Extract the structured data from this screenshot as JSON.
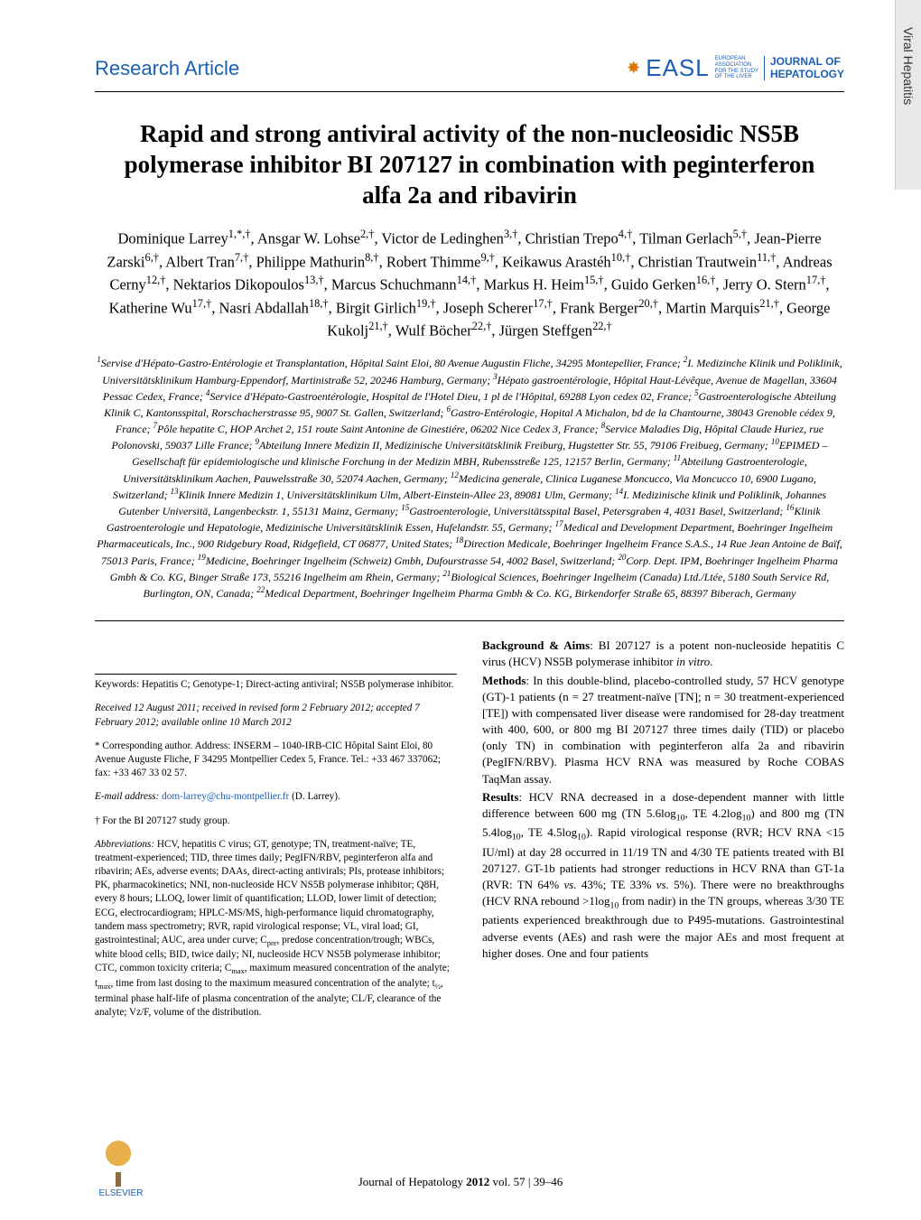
{
  "side_tab": "Viral Hepatitis",
  "header": {
    "section": "Research Article",
    "easl": "EASL",
    "easl_sub1": "EUROPEAN",
    "easl_sub2": "ASSOCIATION",
    "easl_sub3": "FOR THE STUDY",
    "easl_sub4": "OF THE LIVER",
    "journal1": "JOURNAL OF",
    "journal2": "HEPATOLOGY"
  },
  "title": "Rapid and strong antiviral activity of the non-nucleosidic NS5B polymerase inhibitor BI 207127 in combination with peginterferon alfa 2a and ribavirin",
  "authors_html": "Dominique Larrey<sup>1,*,†</sup>, Ansgar W. Lohse<sup>2,†</sup>, Victor de Ledinghen<sup>3,†</sup>, Christian Trepo<sup>4,†</sup>, Tilman Gerlach<sup>5,†</sup>, Jean-Pierre Zarski<sup>6,†</sup>, Albert Tran<sup>7,†</sup>, Philippe Mathurin<sup>8,†</sup>, Robert Thimme<sup>9,†</sup>, Keikawus Arastéh<sup>10,†</sup>, Christian Trautwein<sup>11,†</sup>, Andreas Cerny<sup>12,†</sup>, Nektarios Dikopoulos<sup>13,†</sup>, Marcus Schuchmann<sup>14,†</sup>, Markus H. Heim<sup>15,†</sup>, Guido Gerken<sup>16,†</sup>, Jerry O. Stern<sup>17,†</sup>, Katherine Wu<sup>17,†</sup>, Nasri Abdallah<sup>18,†</sup>, Birgit Girlich<sup>19,†</sup>, Joseph Scherer<sup>17,†</sup>, Frank Berger<sup>20,†</sup>, Martin Marquis<sup>21,†</sup>, George Kukolj<sup>21,†</sup>, Wulf Böcher<sup>22,†</sup>, Jürgen Steffgen<sup>22,†</sup>",
  "affiliations_html": "<sup>1</sup>Servise d'Hépato-Gastro-Entérologie et Transplantation, Hôpital Saint Eloi, 80 Avenue Augustin Fliche, 34295 Montepellier, France; <sup>2</sup>I. Medizinche Klinik und Poliklinik, Universitätsklinikum Hamburg-Eppendorf, Martinistraße 52, 20246 Hamburg, Germany; <sup>3</sup>Hépato gastroentérologie, Hôpital Haut-Lévêque, Avenue de Magellan, 33604 Pessac Cedex, France; <sup>4</sup>Service d'Hépato-Gastroentérologie, Hospital de l'Hotel Dieu, 1 pl de l'Hôpital, 69288 Lyon cedex 02, France; <sup>5</sup>Gastroenterologische Abteilung Klinik C, Kantonsspital, Rorschacherstrasse 95, 9007 St. Gallen, Switzerland; <sup>6</sup>Gastro-Entérologie, Hopital A Michalon, bd de la Chantourne, 38043 Grenoble cédex 9, France; <sup>7</sup>Pôle hepatite C, HOP Archet 2, 151 route Saint Antonine de Ginestiére, 06202 Nice Cedex 3, France; <sup>8</sup>Service Maladies Dig, Hôpital Claude Huriez, rue Polonovski, 59037 Lille France; <sup>9</sup>Abteilung Innere Medizin II, Medizinische Universitätsklinik Freiburg, Hugstetter Str. 55, 79106 Freibueg, Germany; <sup>10</sup>EPIMED – Gesellschaft für epidemiologische und klinische Forchung in der Medizin MBH, Rubensstreße 125, 12157 Berlin, Germany; <sup>11</sup>Abteilung Gastroenterologie, Universitätsklinikum Aachen, Pauwelsstraße 30, 52074 Aachen, Germany; <sup>12</sup>Medicina generale, Clinica Luganese Moncucco, Via Moncucco 10, 6900 Lugano, Switzerland; <sup>13</sup>Klinik Innere Medizin 1, Universitätsklinikum Ulm, Albert-Einstein-Allee 23, 89081 Ulm, Germany; <sup>14</sup>I. Medizinische klinik und Poliklinik, Johannes Gutenber Universitä, Langenbeckstr. 1, 55131 Mainz, Germany; <sup>15</sup>Gastroenterologie, Universitätsspital Basel, Petersgraben 4, 4031 Basel, Switzerland; <sup>16</sup>Klinik Gastroenterologie und Hepatologie, Medizinische Universitätsklinik Essen, Hufelandstr. 55, Germany; <sup>17</sup>Medical and Development Department, Boehringer Ingelheim Pharmaceuticals, Inc., 900 Ridgebury Road, Ridgefield, CT 06877, United States; <sup>18</sup>Direction Medicale, Boehringer Ingelheim France S.A.S., 14 Rue Jean Antoine de Baïf, 75013 Paris, France; <sup>19</sup>Medicine, Boehringer Ingelheim (Schweiz) Gmbh, Dufourstrasse 54, 4002 Basel, Switzerland; <sup>20</sup>Corp. Dept. IPM, Boehringer Ingelheim Pharma Gmbh & Co. KG, Binger Straße 173, 55216 Ingelheim am Rhein, Germany; <sup>21</sup>Biological Sciences, Boehringer Ingelheim (Canada) Ltd./Ltée, 5180 South Service Rd, Burlington, ON, Canada; <sup>22</sup>Medical Department, Boehringer Ingelheim Pharma Gmbh & Co. KG, Birkendorfer Straße 65, 88397 Biberach, Germany",
  "left": {
    "keywords": "Keywords: Hepatitis C; Genotype-1; Direct-acting antiviral; NS5B polymerase inhibitor.",
    "received": "Received 12 August 2011; received in revised form 2 February 2012; accepted 7 February 2012; available online 10 March 2012",
    "corr": "* Corresponding author. Address: INSERM – 1040-IRB-CIC Hôpital Saint Eloi, 80 Avenue Auguste Fliche, F 34295 Montpellier Cedex 5, France. Tel.: +33 467 337062; fax: +33 467 33 02 57.",
    "email_label": "E-mail address:",
    "email": "dom-larrey@chu-montpellier.fr",
    "email_who": "(D. Larrey).",
    "dagger": "† For the BI 207127 study group.",
    "abbrev_html": "<i>Abbreviations:</i> HCV, hepatitis C virus; GT, genotype; TN, treatment-naïve; TE, treatment-experienced; TID, three times daily; PegIFN/RBV, peginterferon alfa and ribavirin; AEs, adverse events; DAAs, direct-acting antivirals; PIs, protease inhibitors; PK, pharmacokinetics; NNI, non-nucleoside HCV NS5B polymerase inhibitor; Q8H, every 8 hours; LLOQ, lower limit of quantification; LLOD, lower limit of detection; ECG, electrocardiogram; HPLC-MS/MS, high-performance liquid chromatography, tandem mass spectrometry; RVR, rapid virological response; VL, viral load; GI, gastrointestinal; AUC, area under curve; C<sub>pre</sub>, predose concentration/trough; WBCs, white blood cells; BID, twice daily; NI, nucleoside HCV NS5B polymerase inhibitor; CTC, common toxicity criteria; C<sub>max</sub>, maximum measured concentration of the analyte; t<sub>max</sub>, time from last dosing to the maximum measured concentration of the analyte; t<sub>½</sub>, terminal phase half-life of plasma concentration of the analyte; CL/F, clearance of the analyte; Vz/F, volume of the distribution."
  },
  "right": {
    "bg_aims_html": "<b>Background & Aims</b>: BI 207127 is a potent non-nucleoside hepatitis C virus (HCV) NS5B polymerase inhibitor <i>in vitro</i>.",
    "methods_html": "<b>Methods</b>: In this double-blind, placebo-controlled study, 57 HCV genotype (GT)-1 patients (n = 27 treatment-naïve [TN]; n = 30 treatment-experienced [TE]) with compensated liver disease were randomised for 28-day treatment with 400, 600, or 800 mg BI 207127 three times daily (TID) or placebo (only TN) in combination with peginterferon alfa 2a and ribavirin (PegIFN/RBV). Plasma HCV RNA was measured by Roche COBAS TaqMan assay.",
    "results_html": "<b>Results</b>: HCV RNA decreased in a dose-dependent manner with little difference between 600 mg (TN 5.6log<sub>10</sub>, TE 4.2log<sub>10</sub>) and 800 mg (TN 5.4log<sub>10</sub>, TE 4.5log<sub>10</sub>). Rapid virological response (RVR; HCV RNA <15 IU/ml) at day 28 occurred in 11/19 TN and 4/30 TE patients treated with BI 207127. GT-1b patients had stronger reductions in HCV RNA than GT-1a (RVR: TN 64% <i>vs.</i> 43%; TE 33% <i>vs.</i> 5%). There were no breakthroughs (HCV RNA rebound >1log<sub>10</sub> from nadir) in the TN groups, whereas 3/30 TE patients experienced breakthrough due to P495-mutations. Gastrointestinal adverse events (AEs) and rash were the major AEs and most frequent at higher doses. One and four patients"
  },
  "footer": {
    "elsevier": "ELSEVIER",
    "cite_html": "Journal of Hepatology <b>2012</b> vol. 57 | 39–46"
  },
  "colors": {
    "link": "#1a5fb4",
    "side_bg": "#e8e8e8"
  }
}
